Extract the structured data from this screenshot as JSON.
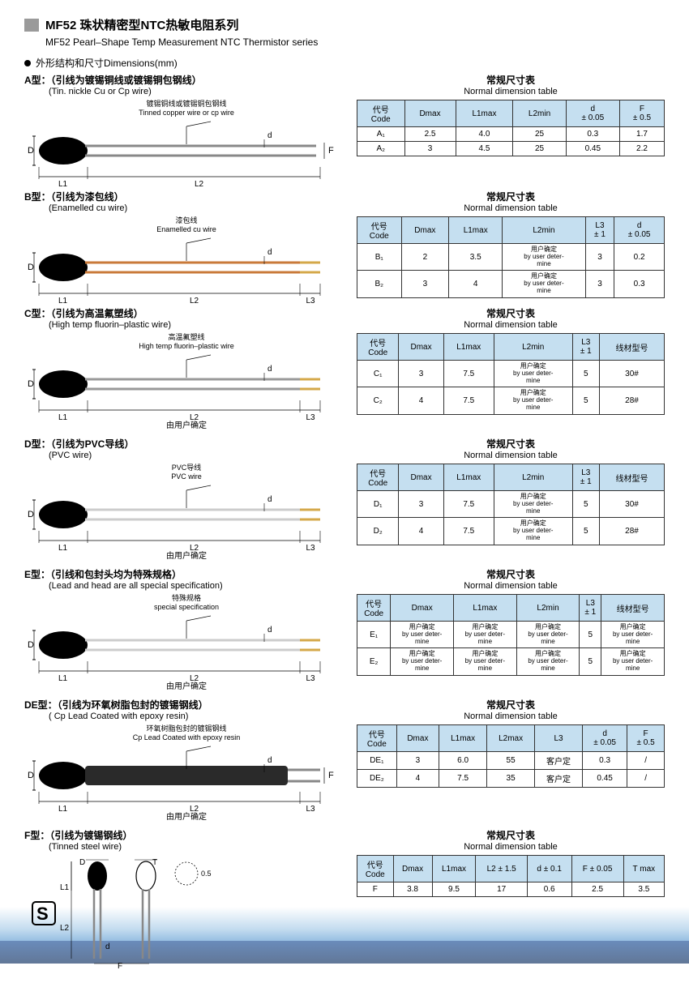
{
  "header": {
    "title_cn": "MF52 珠状精密型NTC热敏电阻系列",
    "title_en": "MF52 Pearl–Shape Temp Measurement NTC Thermistor series",
    "dim_cn": "外形结构和尺寸",
    "dim_en": "Dimensions(mm)"
  },
  "sections": [
    {
      "type_cn": "A型：（引线为镀锡铜线或镀锡铜包钢线）",
      "type_en": "(Tin. nickle Cu or Cp wire)",
      "wire_cn": "镀锡铜线或镀锡铜包钢线",
      "wire_en": "Tinned copper wire or cp wire",
      "has_F": true,
      "has_L3": false,
      "wire_color": "#888",
      "under_note": "",
      "tbl_title_cn": "常规尺寸表",
      "tbl_title_en": "Normal dimension table",
      "columns": [
        "代号\nCode",
        "Dmax",
        "L1max",
        "L2min",
        "d\n± 0.05",
        "F\n± 0.5"
      ],
      "rows": [
        [
          "A₁",
          "2.5",
          "4.0",
          "25",
          "0.3",
          "1.7"
        ],
        [
          "A₂",
          "3",
          "4.5",
          "25",
          "0.45",
          "2.2"
        ]
      ]
    },
    {
      "type_cn": "B型：（引线为漆包线）",
      "type_en": "(Enamelled cu wire)",
      "wire_cn": "漆包线",
      "wire_en": "Enamelled cu wire",
      "has_F": false,
      "has_L3": true,
      "wire_color": "#c97a3a",
      "under_note": "",
      "tbl_title_cn": "常规尺寸表",
      "tbl_title_en": "Normal dimension table",
      "columns": [
        "代号\nCode",
        "Dmax",
        "L1max",
        "L2min",
        "L3\n± 1",
        "d\n± 0.05"
      ],
      "rows": [
        [
          "B₁",
          "2",
          "3.5",
          "用户确定\nby user deter-\nmine",
          "3",
          "0.2"
        ],
        [
          "B₂",
          "3",
          "4",
          "用户确定\nby user deter-\nmine",
          "3",
          "0.3"
        ]
      ]
    },
    {
      "type_cn": "C型：（引线为高温氟塑线）",
      "type_en": "(High temp fluorin–plastic wire)",
      "wire_cn": "高温氟塑线",
      "wire_en": "High temp fluorin–plastic wire",
      "has_F": false,
      "has_L3": true,
      "wire_color": "#999",
      "under_note": "由用户确定",
      "tbl_title_cn": "常规尺寸表",
      "tbl_title_en": "Normal dimension table",
      "columns": [
        "代号\nCode",
        "Dmax",
        "L1max",
        "L2min",
        "L3\n± 1",
        "线材型号"
      ],
      "rows": [
        [
          "C₁",
          "3",
          "7.5",
          "用户确定\nby user deter-\nmine",
          "5",
          "30#"
        ],
        [
          "C₂",
          "4",
          "7.5",
          "用户确定\nby user deter-\nmine",
          "5",
          "28#"
        ]
      ]
    },
    {
      "type_cn": "D型：（引线为PVC导线）",
      "type_en": "(PVC wire)",
      "wire_cn": "PVC导线",
      "wire_en": "PVC  wire",
      "has_F": false,
      "has_L3": true,
      "wire_color": "#ccc",
      "under_note": "由用户确定",
      "tbl_title_cn": "常规尺寸表",
      "tbl_title_en": "Normal dimension table",
      "columns": [
        "代号\nCode",
        "Dmax",
        "L1max",
        "L2min",
        "L3\n± 1",
        "线材型号"
      ],
      "rows": [
        [
          "D₁",
          "3",
          "7.5",
          "用户确定\nby user deter-\nmine",
          "5",
          "30#"
        ],
        [
          "D₂",
          "4",
          "7.5",
          "用户确定\nby user deter-\nmine",
          "5",
          "28#"
        ]
      ]
    },
    {
      "type_cn": "E型：（引线和包封头均为特殊规格）",
      "type_en": "(Lead and head are all special specification)",
      "wire_cn": "特殊规格",
      "wire_en": "special specification",
      "has_F": false,
      "has_L3": true,
      "wire_color": "#ccc",
      "under_note": "由用户确定",
      "tbl_title_cn": "常规尺寸表",
      "tbl_title_en": "Normal dimension table",
      "columns": [
        "代号\nCode",
        "Dmax",
        "L1max",
        "L2min",
        "L3\n± 1",
        "线材型号"
      ],
      "rows": [
        [
          "E₁",
          "用户确定\nby user deter-\nmine",
          "用户确定\nby user deter-\nmine",
          "用户确定\nby user deter-\nmine",
          "5",
          "用户确定\nby user deter-\nmine"
        ],
        [
          "E₂",
          "用户确定\nby user deter-\nmine",
          "用户确定\nby user deter-\nmine",
          "用户确定\nby user deter-\nmine",
          "5",
          "用户确定\nby user deter-\nmine"
        ]
      ]
    },
    {
      "type_cn": "DE型：（引线为环氧树脂包封的镀锡钢线）",
      "type_en": "( Cp Lead Coated with epoxy resin)",
      "wire_cn": "环氧树脂包封的镀锡钢线",
      "wire_en": "Cp Lead Coated with epoxy resin",
      "has_F": true,
      "has_L3": true,
      "wire_color": "#555",
      "stub": true,
      "under_note": "由用户确定",
      "tbl_title_cn": "常规尺寸表",
      "tbl_title_en": "Normal dimension table",
      "columns": [
        "代号\nCode",
        "Dmax",
        "L1max",
        "L2max",
        "L3",
        "d\n± 0.05",
        "F\n± 0.5"
      ],
      "rows": [
        [
          "DE₁",
          "3",
          "6.0",
          "55",
          "客户定",
          "0.3",
          "/"
        ],
        [
          "DE₂",
          "4",
          "7.5",
          "35",
          "客户定",
          "0.45",
          "/"
        ]
      ]
    }
  ],
  "fsection": {
    "type_cn": "F型：（引线为镀锡钢线）",
    "type_en": "(Tinned steel wire)",
    "tbl_title_cn": "常规尺寸表",
    "tbl_title_en": "Normal dimension table",
    "columns": [
      "代号\nCode",
      "Dmax",
      "L1max",
      "L2 ± 1.5",
      "d  ± 0.1",
      "F ± 0.05",
      "T max"
    ],
    "rows": [
      [
        "F",
        "3.8",
        "9.5",
        "17",
        "0.6",
        "2.5",
        "3.5"
      ]
    ]
  }
}
